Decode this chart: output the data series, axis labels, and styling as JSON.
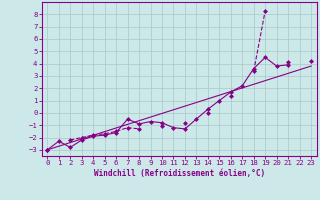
{
  "xlabel": "Windchill (Refroidissement éolien,°C)",
  "background_color": "#cce8e8",
  "grid_color": "#a8c8c8",
  "line_color": "#880088",
  "x_values": [
    0,
    1,
    2,
    3,
    4,
    5,
    6,
    7,
    8,
    9,
    10,
    11,
    12,
    13,
    14,
    15,
    16,
    17,
    18,
    19,
    20,
    21,
    22,
    23
  ],
  "series1_y": [
    -3.0,
    -2.3,
    -2.8,
    -2.2,
    -1.9,
    -1.8,
    -1.6,
    -0.5,
    -0.9,
    -0.7,
    -0.8,
    -1.2,
    -1.3,
    -0.5,
    0.3,
    1.0,
    1.7,
    2.2,
    3.6,
    4.5,
    3.8,
    3.9,
    null,
    null
  ],
  "series2_y": [
    -3.0,
    null,
    -2.2,
    -2.0,
    -1.8,
    -1.7,
    -1.5,
    -1.2,
    -1.3,
    null,
    -1.1,
    null,
    -0.8,
    null,
    0.0,
    null,
    1.4,
    null,
    3.4,
    8.3,
    null,
    4.1,
    null,
    4.2
  ],
  "series3_y": [
    -3.0,
    null,
    null,
    null,
    null,
    null,
    null,
    null,
    null,
    null,
    null,
    null,
    null,
    null,
    null,
    null,
    null,
    null,
    null,
    null,
    null,
    null,
    null,
    3.8
  ],
  "ylim": [
    -3.5,
    9.0
  ],
  "xlim": [
    -0.5,
    23.5
  ],
  "yticks": [
    -3,
    -2,
    -1,
    0,
    1,
    2,
    3,
    4,
    5,
    6,
    7,
    8
  ],
  "xticks": [
    0,
    1,
    2,
    3,
    4,
    5,
    6,
    7,
    8,
    9,
    10,
    11,
    12,
    13,
    14,
    15,
    16,
    17,
    18,
    19,
    20,
    21,
    22,
    23
  ]
}
